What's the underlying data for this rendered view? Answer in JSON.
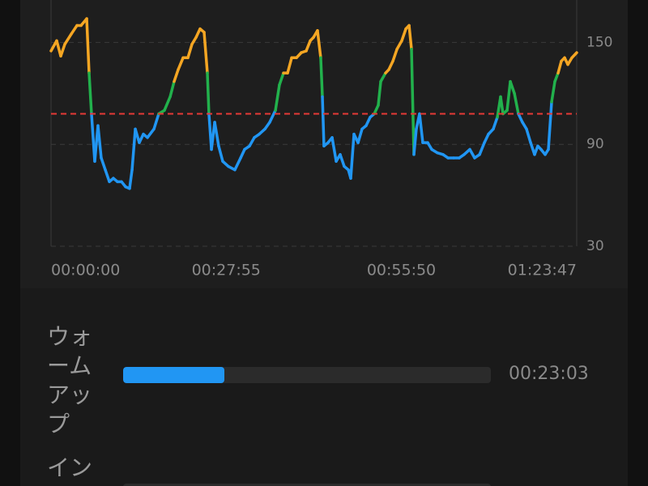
{
  "chart_data": {
    "type": "line",
    "x": [
      0,
      54,
      93,
      132,
      194,
      248,
      287,
      341,
      364,
      387,
      418,
      449,
      480,
      519,
      558,
      596,
      635,
      674,
      713,
      751,
      775,
      806,
      844,
      883,
      922,
      984,
      1030,
      1084,
      1139,
      1177,
      1216,
      1263,
      1309,
      1348,
      1387,
      1425,
      1464,
      1495,
      1510,
      1534,
      1565,
      1603,
      1642,
      1696,
      1758,
      1813,
      1851,
      1898,
      1944,
      1991,
      2045,
      2091,
      2146,
      2184,
      2223,
      2262,
      2301,
      2347,
      2393,
      2440,
      2479,
      2510,
      2548,
      2579,
      2595,
      2610,
      2649,
      2688,
      2727,
      2765,
      2804,
      2843,
      2866,
      2897,
      2936,
      2974,
      3013,
      3052,
      3091,
      3129,
      3153,
      3199,
      3230,
      3269,
      3308,
      3354,
      3393,
      3424,
      3447,
      3470,
      3493,
      3524,
      3555,
      3602,
      3641,
      3695,
      3749,
      3796,
      3850,
      3904,
      3950,
      4005,
      4051,
      4098,
      4144,
      4183,
      4229,
      4268,
      4299,
      4322,
      4361,
      4392,
      4431,
      4469,
      4508,
      4547,
      4586,
      4624,
      4655,
      4686,
      4725,
      4756,
      4787,
      4818,
      4849,
      4880,
      4911,
      4942,
      4981,
      5027
    ],
    "values": [
      145,
      151,
      142,
      149,
      155,
      160,
      160,
      164,
      132,
      108,
      80,
      101,
      82,
      75,
      68,
      70,
      68,
      68,
      65,
      64,
      75,
      99,
      91,
      96,
      94,
      99,
      108,
      110,
      118,
      127,
      134,
      141,
      141,
      149,
      153,
      158,
      156,
      132,
      108,
      87,
      103,
      89,
      80,
      77,
      75,
      82,
      87,
      89,
      94,
      96,
      99,
      103,
      110,
      125,
      132,
      132,
      141,
      141,
      144,
      145,
      151,
      153,
      157,
      141,
      118,
      89,
      91,
      94,
      80,
      84,
      77,
      75,
      70,
      96,
      91,
      99,
      101,
      106,
      108,
      113,
      127,
      132,
      134,
      139,
      146,
      151,
      158,
      160,
      146,
      84,
      99,
      108,
      91,
      91,
      87,
      85,
      84,
      82,
      82,
      82,
      84,
      87,
      82,
      84,
      91,
      96,
      99,
      106,
      118,
      108,
      110,
      127,
      120,
      108,
      103,
      99,
      91,
      84,
      89,
      87,
      84,
      87,
      115,
      127,
      132,
      139,
      141,
      137,
      141,
      144
    ],
    "xlim": [
      0,
      5027
    ],
    "xticks": [
      {
        "value": 0,
        "label": "00:00:00"
      },
      {
        "value": 1675,
        "label": "00:27:55"
      },
      {
        "value": 3350,
        "label": "00:55:50"
      },
      {
        "value": 5027,
        "label": "01:23:47"
      }
    ],
    "ylim": [
      30,
      175
    ],
    "yticks": [
      30,
      90,
      150
    ],
    "grid": true,
    "zone_thresholds": [
      108,
      130
    ],
    "zone_colors": [
      "#2196f3",
      "#22b14c",
      "#f5a623"
    ],
    "reference_line": {
      "value": 108,
      "color": "#e53935"
    }
  },
  "zones": [
    {
      "label": "ウォームアップ",
      "duration": {
        "value": 1383,
        "label": "00:23:03"
      },
      "color": "#2196f3"
    },
    {
      "label": "イン"
    }
  ]
}
